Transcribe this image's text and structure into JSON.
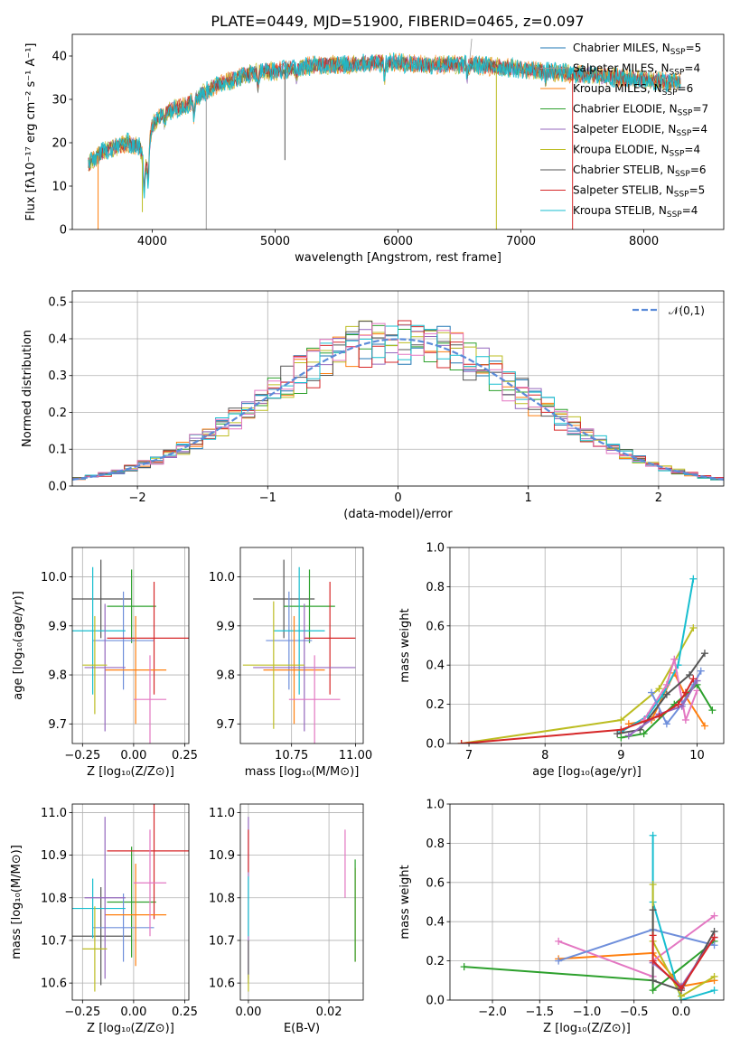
{
  "figure_title": "PLATE=0449, MJD=51900, FIBERID=0465, z=0.097",
  "colors": {
    "Chabrier MILES": "#1f77b4",
    "Salpeter MILES": "#9c9c9c",
    "Kroupa MILES": "#ff7f0e",
    "Chabrier ELODIE": "#2ca02c",
    "Salpeter ELODIE": "#9467bd",
    "Kroupa ELODIE": "#bcbd22",
    "Chabrier STELIB": "#555555",
    "Salpeter STELIB": "#d62728",
    "Kroupa STELIB": "#17becf",
    "normal": "#5b8bd9",
    "blue": "#6f8fdb",
    "pink": "#e377c2"
  },
  "chart_data": [
    {
      "id": "spectrum",
      "type": "line",
      "title": "PLATE=0449, MJD=51900, FIBERID=0465, z=0.097",
      "xlabel": "wavelength [Angstrom, rest frame]",
      "ylabel": "Flux [fλ10⁻¹⁷ erg cm⁻² s⁻¹ A⁻¹]",
      "xlim": [
        3350,
        8650
      ],
      "ylim": [
        0,
        45
      ],
      "xticks": [
        4000,
        5000,
        6000,
        7000,
        8000
      ],
      "yticks": [
        0,
        10,
        20,
        30,
        40
      ],
      "grid": false,
      "legend_position": "top-right",
      "legend": [
        {
          "name": "Chabrier MILES",
          "nssp": "5"
        },
        {
          "name": "Salpeter MILES",
          "nssp": "4"
        },
        {
          "name": "Kroupa MILES",
          "nssp": "6"
        },
        {
          "name": "Chabrier ELODIE",
          "nssp": "7"
        },
        {
          "name": "Salpeter ELODIE",
          "nssp": "4"
        },
        {
          "name": "Kroupa ELODIE",
          "nssp": "4"
        },
        {
          "name": "Chabrier STELIB",
          "nssp": "6"
        },
        {
          "name": "Salpeter STELIB",
          "nssp": "5"
        },
        {
          "name": "Kroupa STELIB",
          "nssp": "4"
        }
      ],
      "continuum": [
        [
          3480,
          15
        ],
        [
          3600,
          18
        ],
        [
          3700,
          19
        ],
        [
          3800,
          20
        ],
        [
          3900,
          19
        ],
        [
          3950,
          14
        ],
        [
          4000,
          24
        ],
        [
          4100,
          27
        ],
        [
          4200,
          28
        ],
        [
          4300,
          29
        ],
        [
          4400,
          31
        ],
        [
          4500,
          33
        ],
        [
          4600,
          34
        ],
        [
          4700,
          35
        ],
        [
          4800,
          36
        ],
        [
          4900,
          36.5
        ],
        [
          5000,
          36.5
        ],
        [
          5100,
          37
        ],
        [
          5200,
          37.5
        ],
        [
          5400,
          38
        ],
        [
          5600,
          38
        ],
        [
          5800,
          38.5
        ],
        [
          6000,
          38.5
        ],
        [
          6200,
          38
        ],
        [
          6400,
          38
        ],
        [
          6600,
          38
        ],
        [
          6800,
          37.5
        ],
        [
          7000,
          37
        ],
        [
          7200,
          36.5
        ],
        [
          7400,
          36
        ],
        [
          7600,
          35.5
        ],
        [
          7800,
          35
        ],
        [
          8000,
          34.5
        ],
        [
          8200,
          34
        ],
        [
          8300,
          34
        ]
      ]
    },
    {
      "id": "residuals",
      "type": "bar",
      "xlabel": "(data-model)/error",
      "ylabel": "Normed distribution",
      "xlim": [
        -2.5,
        2.5
      ],
      "ylim": [
        0,
        0.53
      ],
      "xticks": [
        -2,
        -1,
        0,
        1,
        2
      ],
      "yticks": [
        0.0,
        0.1,
        0.2,
        0.3,
        0.4,
        0.5
      ],
      "grid": true,
      "legend_position": "top-right",
      "legend": [
        "𝒩(0,1)"
      ],
      "bin_width": 0.1
    },
    {
      "id": "age_vs_z",
      "type": "scatter",
      "xlabel": "Z [log₁₀(Z/Z⊙)]",
      "ylabel": "age  [log₁₀(age/yr)]",
      "xlim": [
        -0.3,
        0.27
      ],
      "ylim": [
        9.66,
        10.06
      ],
      "xticks": [
        -0.25,
        0.0,
        0.25
      ],
      "yticks": [
        9.7,
        9.8,
        9.9,
        10.0
      ],
      "grid": true,
      "points": [
        {
          "c": "#555555",
          "x": -0.16,
          "xerr": 0.15,
          "y": 9.955,
          "yerr": 0.08
        },
        {
          "c": "#2ca02c",
          "x": -0.01,
          "xerr": 0.12,
          "y": 9.94,
          "yerr": 0.075
        },
        {
          "c": "#6f8fdb",
          "x": -0.05,
          "xerr": 0.15,
          "y": 9.87,
          "yerr": 0.1
        },
        {
          "c": "#17becf",
          "x": -0.2,
          "xerr": 0.16,
          "y": 9.89,
          "yerr": 0.13
        },
        {
          "c": "#d62728",
          "x": 0.1,
          "xerr": 0.23,
          "y": 9.875,
          "yerr": 0.115
        },
        {
          "c": "#ff7f0e",
          "x": 0.01,
          "xerr": 0.15,
          "y": 9.81,
          "yerr": 0.11
        },
        {
          "c": "#9467bd",
          "x": -0.14,
          "xerr": 0.1,
          "y": 9.815,
          "yerr": 0.13
        },
        {
          "c": "#bcbd22",
          "x": -0.19,
          "xerr": 0.06,
          "y": 9.82,
          "yerr": 0.1
        },
        {
          "c": "#e377c2",
          "x": 0.08,
          "xerr": 0.08,
          "y": 9.75,
          "yerr": 0.09
        }
      ]
    },
    {
      "id": "age_vs_mass",
      "type": "scatter",
      "xlabel": "mass [log₁₀(M/M⊙)]",
      "ylabel": "",
      "xlim": [
        10.55,
        11.03
      ],
      "ylim": [
        9.66,
        10.06
      ],
      "xticks": [
        10.75,
        11.0
      ],
      "yticks": [
        9.7,
        9.8,
        9.9,
        10.0
      ],
      "grid": true,
      "points": [
        {
          "c": "#555555",
          "x": 10.72,
          "xerr": 0.12,
          "y": 9.955,
          "yerr": 0.08
        },
        {
          "c": "#2ca02c",
          "x": 10.82,
          "xerr": 0.1,
          "y": 9.94,
          "yerr": 0.075
        },
        {
          "c": "#6f8fdb",
          "x": 10.74,
          "xerr": 0.09,
          "y": 9.87,
          "yerr": 0.1
        },
        {
          "c": "#17becf",
          "x": 10.78,
          "xerr": 0.1,
          "y": 9.89,
          "yerr": 0.13
        },
        {
          "c": "#d62728",
          "x": 10.9,
          "xerr": 0.1,
          "y": 9.875,
          "yerr": 0.115
        },
        {
          "c": "#ff7f0e",
          "x": 10.76,
          "xerr": 0.12,
          "y": 9.81,
          "yerr": 0.11
        },
        {
          "c": "#9467bd",
          "x": 10.8,
          "xerr": 0.2,
          "y": 9.815,
          "yerr": 0.13
        },
        {
          "c": "#bcbd22",
          "x": 10.68,
          "xerr": 0.12,
          "y": 9.82,
          "yerr": 0.13
        },
        {
          "c": "#e377c2",
          "x": 10.84,
          "xerr": 0.1,
          "y": 9.75,
          "yerr": 0.09
        }
      ]
    },
    {
      "id": "weight_vs_age",
      "type": "line",
      "xlabel": "age  [log₁₀(age/yr)]",
      "ylabel": "mass weight",
      "xlim": [
        6.75,
        10.35
      ],
      "ylim": [
        0,
        1.0
      ],
      "xticks": [
        7,
        8,
        9,
        10
      ],
      "yticks": [
        0.0,
        0.2,
        0.4,
        0.6,
        0.8,
        1.0
      ],
      "grid": true,
      "series": [
        {
          "c": "#ff7f0e",
          "x": [
            9.1,
            9.4,
            9.7,
            9.85,
            10.1
          ],
          "y": [
            0.1,
            0.12,
            0.36,
            0.24,
            0.09
          ]
        },
        {
          "c": "#bcbd22",
          "x": [
            6.9,
            9.0,
            9.5,
            9.95
          ],
          "y": [
            0.0,
            0.12,
            0.28,
            0.59
          ]
        },
        {
          "c": "#17becf",
          "x": [
            9.0,
            9.35,
            9.55,
            9.75,
            9.95
          ],
          "y": [
            0.06,
            0.14,
            0.25,
            0.4,
            0.84
          ]
        },
        {
          "c": "#e377c2",
          "x": [
            9.3,
            9.6,
            9.7,
            9.85,
            10.0
          ],
          "y": [
            0.12,
            0.3,
            0.43,
            0.12,
            0.27
          ]
        },
        {
          "c": "#6f8fdb",
          "x": [
            9.4,
            9.6,
            9.8,
            9.95,
            10.05
          ],
          "y": [
            0.26,
            0.1,
            0.2,
            0.3,
            0.37
          ]
        },
        {
          "c": "#555555",
          "x": [
            8.95,
            9.25,
            9.6,
            9.9,
            10.1
          ],
          "y": [
            0.05,
            0.07,
            0.25,
            0.35,
            0.46
          ]
        },
        {
          "c": "#2ca02c",
          "x": [
            9.0,
            9.3,
            9.7,
            10.0,
            10.2
          ],
          "y": [
            0.03,
            0.05,
            0.2,
            0.3,
            0.17
          ]
        },
        {
          "c": "#9467bd",
          "x": [
            9.1,
            9.5,
            9.8,
            10.0
          ],
          "y": [
            0.04,
            0.15,
            0.19,
            0.32
          ]
        },
        {
          "c": "#d62728",
          "x": [
            6.9,
            9.0,
            9.5,
            9.75,
            9.85,
            9.95
          ],
          "y": [
            0.0,
            0.07,
            0.14,
            0.2,
            0.26,
            0.33
          ]
        }
      ]
    },
    {
      "id": "mass_vs_z",
      "type": "scatter",
      "xlabel": "Z [log₁₀(Z/Z⊙)]",
      "ylabel": "mass [log₁₀(M/M⊙)]",
      "xlim": [
        -0.3,
        0.27
      ],
      "ylim": [
        10.56,
        11.02
      ],
      "xticks": [
        -0.25,
        0.0,
        0.25
      ],
      "yticks": [
        10.6,
        10.7,
        10.8,
        10.9,
        11.0
      ],
      "grid": true,
      "points": [
        {
          "c": "#555555",
          "x": -0.16,
          "xerr": 0.15,
          "y": 10.71,
          "yerr": 0.115
        },
        {
          "c": "#2ca02c",
          "x": -0.01,
          "xerr": 0.12,
          "y": 10.79,
          "yerr": 0.13
        },
        {
          "c": "#6f8fdb",
          "x": -0.05,
          "xerr": 0.15,
          "y": 10.73,
          "yerr": 0.08
        },
        {
          "c": "#17becf",
          "x": -0.2,
          "xerr": 0.16,
          "y": 10.775,
          "yerr": 0.07
        },
        {
          "c": "#d62728",
          "x": 0.1,
          "xerr": 0.23,
          "y": 10.91,
          "yerr": 0.16
        },
        {
          "c": "#ff7f0e",
          "x": 0.01,
          "xerr": 0.15,
          "y": 10.76,
          "yerr": 0.12
        },
        {
          "c": "#9467bd",
          "x": -0.14,
          "xerr": 0.1,
          "y": 10.8,
          "yerr": 0.19
        },
        {
          "c": "#bcbd22",
          "x": -0.19,
          "xerr": 0.06,
          "y": 10.68,
          "yerr": 0.1
        },
        {
          "c": "#e377c2",
          "x": 0.08,
          "xerr": 0.08,
          "y": 10.835,
          "yerr": 0.125
        }
      ]
    },
    {
      "id": "mass_vs_ebv",
      "type": "scatter",
      "xlabel": "E(B-V)",
      "ylabel": "",
      "xlim": [
        -0.002,
        0.0285
      ],
      "ylim": [
        10.56,
        11.02
      ],
      "xticks": [
        0.0,
        0.02
      ],
      "yticks": [
        10.6,
        10.7,
        10.8,
        10.9,
        11.0
      ],
      "grid": true,
      "points": [
        {
          "c": "#9467bd",
          "x": 0.0,
          "xerr": 0.0,
          "y": 10.8,
          "yerr": 0.19
        },
        {
          "c": "#d62728",
          "x": 0.0,
          "xerr": 0.0,
          "y": 10.91,
          "yerr": 0.05
        },
        {
          "c": "#17becf",
          "x": 0.0,
          "xerr": 0.0,
          "y": 10.78,
          "yerr": 0.07
        },
        {
          "c": "#555555",
          "x": 0.0,
          "xerr": 0.0,
          "y": 10.65,
          "yerr": 0.05
        },
        {
          "c": "#bcbd22",
          "x": 0.0,
          "xerr": 0.0,
          "y": 10.6,
          "yerr": 0.02
        },
        {
          "c": "#e377c2",
          "x": 0.024,
          "xerr": 0.0,
          "y": 10.88,
          "yerr": 0.08
        },
        {
          "c": "#ff7f0e",
          "x": 0.0265,
          "xerr": 0.0,
          "y": 10.76,
          "yerr": 0.11
        },
        {
          "c": "#2ca02c",
          "x": 0.0265,
          "xerr": 0.0,
          "y": 10.77,
          "yerr": 0.12
        }
      ]
    },
    {
      "id": "weight_vs_z",
      "type": "line",
      "xlabel": "Z [log₁₀(Z/Z⊙)]",
      "ylabel": "mass weight",
      "xlim": [
        -2.45,
        0.45
      ],
      "ylim": [
        0,
        1.0
      ],
      "xticks": [
        -2.0,
        -1.5,
        -1.0,
        -0.5,
        0.0
      ],
      "yticks": [
        0.0,
        0.2,
        0.4,
        0.6,
        0.8,
        1.0
      ],
      "grid": true,
      "series": [
        {
          "c": "#2ca02c",
          "x": [
            -2.3,
            -0.3,
            -0.3,
            0.35
          ],
          "y": [
            0.17,
            0.1,
            0.05,
            0.3
          ]
        },
        {
          "c": "#ff7f0e",
          "x": [
            -1.3,
            -0.3,
            0.0,
            0.35
          ],
          "y": [
            0.21,
            0.24,
            0.07,
            0.1
          ]
        },
        {
          "c": "#e377c2",
          "x": [
            -1.3,
            -0.3,
            -0.3,
            0.35
          ],
          "y": [
            0.3,
            0.12,
            0.2,
            0.43
          ]
        },
        {
          "c": "#6f8fdb",
          "x": [
            -1.3,
            -0.3,
            0.35
          ],
          "y": [
            0.2,
            0.36,
            0.28
          ]
        },
        {
          "c": "#17becf",
          "x": [
            -0.3,
            -0.3,
            0.0,
            0.35
          ],
          "y": [
            0.84,
            0.5,
            0.0,
            0.05
          ]
        },
        {
          "c": "#bcbd22",
          "x": [
            -0.3,
            -0.3,
            0.0,
            0.35
          ],
          "y": [
            0.59,
            0.3,
            0.02,
            0.12
          ]
        },
        {
          "c": "#555555",
          "x": [
            -0.3,
            -0.3,
            0.0,
            0.35
          ],
          "y": [
            0.46,
            0.1,
            0.05,
            0.35
          ]
        },
        {
          "c": "#9467bd",
          "x": [
            -0.3,
            0.0,
            0.35
          ],
          "y": [
            0.19,
            0.07,
            0.32
          ]
        },
        {
          "c": "#d62728",
          "x": [
            -0.3,
            -0.3,
            0.0,
            0.35
          ],
          "y": [
            0.33,
            0.2,
            0.06,
            0.32
          ]
        }
      ]
    }
  ]
}
